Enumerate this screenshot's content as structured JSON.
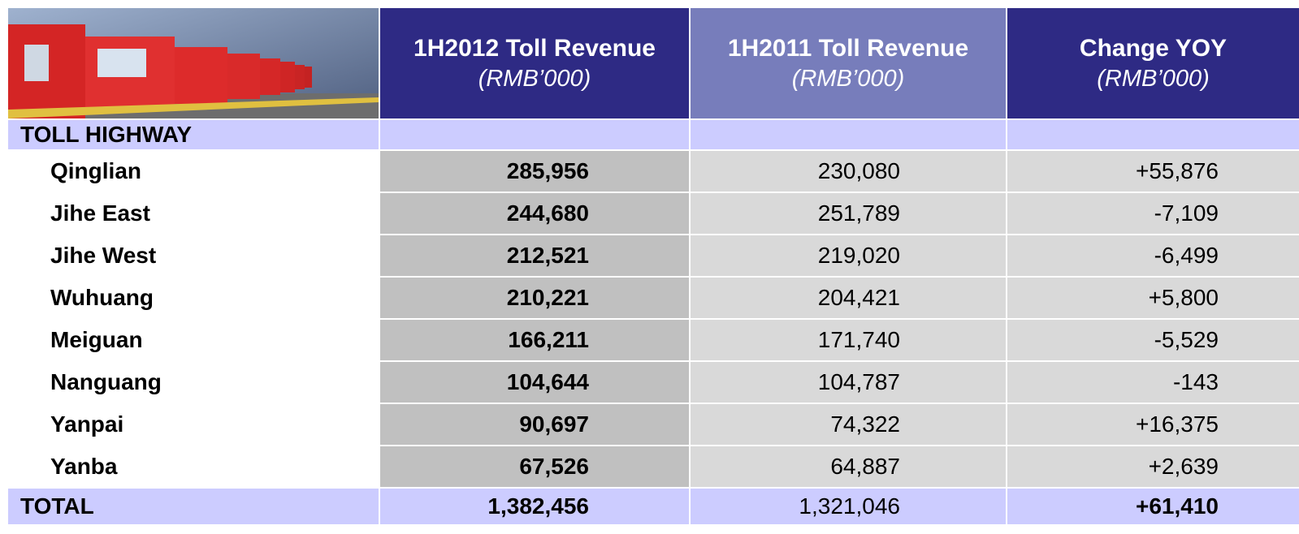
{
  "table": {
    "header": [
      {
        "title": "1H2012 Toll Revenue",
        "unit": "(RMB’000)"
      },
      {
        "title": "1H2011 Toll Revenue",
        "unit": "(RMB’000)"
      },
      {
        "title": "Change YOY",
        "unit": "(RMB’000)"
      }
    ],
    "section": "TOLL HIGHWAY",
    "rows": [
      [
        "Qinglian",
        "285,956",
        "230,080",
        "+55,876"
      ],
      [
        "Jihe East",
        "244,680",
        "251,789",
        "-7,109"
      ],
      [
        "Jihe West",
        "212,521",
        "219,020",
        "-6,499"
      ],
      [
        "Wuhuang",
        "210,221",
        "204,421",
        "+5,800"
      ],
      [
        "Meiguan",
        "166,211",
        "171,740",
        "-5,529"
      ],
      [
        "Nanguang",
        "104,644",
        "104,787",
        "-143"
      ],
      [
        "Yanpai",
        "90,697",
        "74,322",
        "+16,375"
      ],
      [
        "Yanba",
        "67,526",
        "64,887",
        "+2,639"
      ]
    ],
    "total": [
      "TOTAL",
      "1,382,456",
      "1,321,046",
      "+61,410"
    ]
  }
}
